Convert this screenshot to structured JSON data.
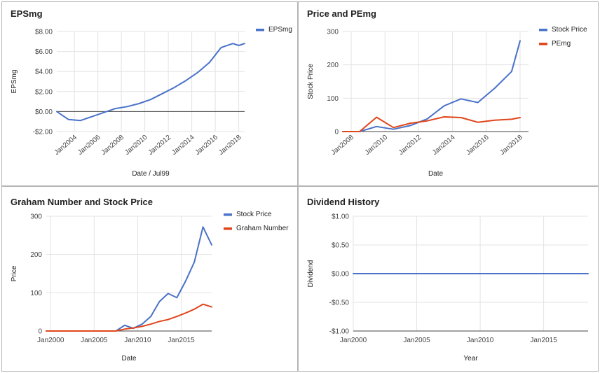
{
  "chart_data": [
    {
      "type": "line",
      "title": "EPSmg",
      "xlabel": "Date / Jul99",
      "ylabel": "EPSmg",
      "ylim": [
        -2,
        8
      ],
      "yticks": [
        -2,
        0,
        2,
        4,
        6,
        8
      ],
      "ytick_labels": [
        "-$2.00",
        "$0.00",
        "$2.00",
        "$4.00",
        "$6.00",
        "$8.00"
      ],
      "xlim": [
        2002.5,
        2018.5
      ],
      "xticks": [
        2004,
        2006,
        2008,
        2010,
        2012,
        2014,
        2016,
        2018
      ],
      "xtick_labels": [
        "Jan2004",
        "Jan2006",
        "Jan2008",
        "Jan2010",
        "Jan2012",
        "Jan2014",
        "Jan2016",
        "Jan2018"
      ],
      "xtick_rotated": true,
      "grid": true,
      "zero_line": true,
      "legend_position": "top-right",
      "series": [
        {
          "name": "EPSmg",
          "color": "#4a72c9",
          "x": [
            2002.5,
            2003.5,
            2004.5,
            2005.5,
            2006.5,
            2007.5,
            2008.5,
            2009.5,
            2010.5,
            2011.5,
            2012.5,
            2013.5,
            2014.5,
            2015.5,
            2016.5,
            2017.5,
            2018.0,
            2018.5
          ],
          "y": [
            0.0,
            -0.8,
            -0.9,
            -0.5,
            -0.1,
            0.3,
            0.5,
            0.8,
            1.2,
            1.8,
            2.4,
            3.1,
            3.9,
            4.9,
            6.4,
            6.8,
            6.6,
            6.8
          ]
        }
      ]
    },
    {
      "type": "line",
      "title": "Price and PEmg",
      "xlabel": "Date",
      "ylabel": "Stock Price",
      "ylim": [
        0,
        300
      ],
      "yticks": [
        0,
        100,
        200,
        300
      ],
      "ytick_labels": [
        "0",
        "100",
        "200",
        "300"
      ],
      "xlim": [
        2007.5,
        2018.5
      ],
      "xticks": [
        2008,
        2010,
        2012,
        2014,
        2016,
        2018
      ],
      "xtick_labels": [
        "Jan2008",
        "Jan2010",
        "Jan2012",
        "Jan2014",
        "Jan2016",
        "Jan2018"
      ],
      "xtick_rotated": true,
      "grid": true,
      "zero_line": false,
      "legend_position": "top-right",
      "series": [
        {
          "name": "Stock Price",
          "color": "#4a72c9",
          "x": [
            2007.5,
            2008.5,
            2009.5,
            2010.5,
            2011.5,
            2012.5,
            2013.5,
            2014.5,
            2015.5,
            2016.5,
            2017.5,
            2018.0
          ],
          "y": [
            0,
            0,
            15,
            7,
            18,
            38,
            77,
            98,
            87,
            130,
            180,
            272
          ]
        },
        {
          "name": "PEmg",
          "color": "#e0461b",
          "x": [
            2007.5,
            2008.5,
            2009.5,
            2010.5,
            2011.5,
            2012.5,
            2013.5,
            2014.5,
            2015.5,
            2016.5,
            2017.5,
            2018.0
          ],
          "y": [
            0,
            0,
            43,
            12,
            25,
            32,
            44,
            42,
            28,
            34,
            37,
            42
          ]
        }
      ]
    },
    {
      "type": "line",
      "title": "Graham Number and Stock Price",
      "xlabel": "Date",
      "ylabel": "Price",
      "ylim": [
        0,
        300
      ],
      "yticks": [
        0,
        100,
        200,
        300
      ],
      "ytick_labels": [
        "0",
        "100",
        "200",
        "300"
      ],
      "xlim": [
        1999.5,
        2018.5
      ],
      "xticks": [
        2000,
        2005,
        2010,
        2015
      ],
      "xtick_labels": [
        "Jan2000",
        "Jan2005",
        "Jan2010",
        "Jan2015"
      ],
      "xtick_rotated": false,
      "grid": true,
      "zero_line": false,
      "legend_position": "top-right",
      "series": [
        {
          "name": "Stock Price",
          "color": "#4a72c9",
          "x": [
            1999.5,
            2006.5,
            2007.5,
            2008.5,
            2009.5,
            2010.5,
            2011.5,
            2012.5,
            2013.5,
            2014.5,
            2015.5,
            2016.5,
            2017.5,
            2018.5
          ],
          "y": [
            0,
            0,
            0,
            15,
            7,
            18,
            38,
            77,
            98,
            87,
            130,
            180,
            272,
            225
          ]
        },
        {
          "name": "Graham Number",
          "color": "#e0461b",
          "x": [
            1999.5,
            2006.5,
            2007.5,
            2008.5,
            2009.5,
            2010.5,
            2011.5,
            2012.5,
            2013.5,
            2014.5,
            2015.5,
            2016.5,
            2017.5,
            2018.5
          ],
          "y": [
            0,
            0,
            0,
            5,
            8,
            12,
            18,
            25,
            30,
            38,
            47,
            57,
            70,
            63
          ]
        }
      ]
    },
    {
      "type": "line",
      "title": "Dividend History",
      "xlabel": "Year",
      "ylabel": "Dividend",
      "ylim": [
        -1,
        1
      ],
      "yticks": [
        -1,
        -0.5,
        0,
        0.5,
        1
      ],
      "ytick_labels": [
        "-$1.00",
        "-$0.50",
        "$0.00",
        "$0.50",
        "$1.00"
      ],
      "xlim": [
        2000,
        2018.5
      ],
      "xticks": [
        2000,
        2005,
        2010,
        2015
      ],
      "xtick_labels": [
        "Jan2000",
        "Jan2005",
        "Jan2010",
        "Jan2015"
      ],
      "xtick_rotated": false,
      "grid": true,
      "zero_line": false,
      "legend_position": "none",
      "series": [
        {
          "color": "#4a72c9",
          "x": [
            2000,
            2018.5
          ],
          "y": [
            0,
            0
          ]
        }
      ]
    }
  ]
}
